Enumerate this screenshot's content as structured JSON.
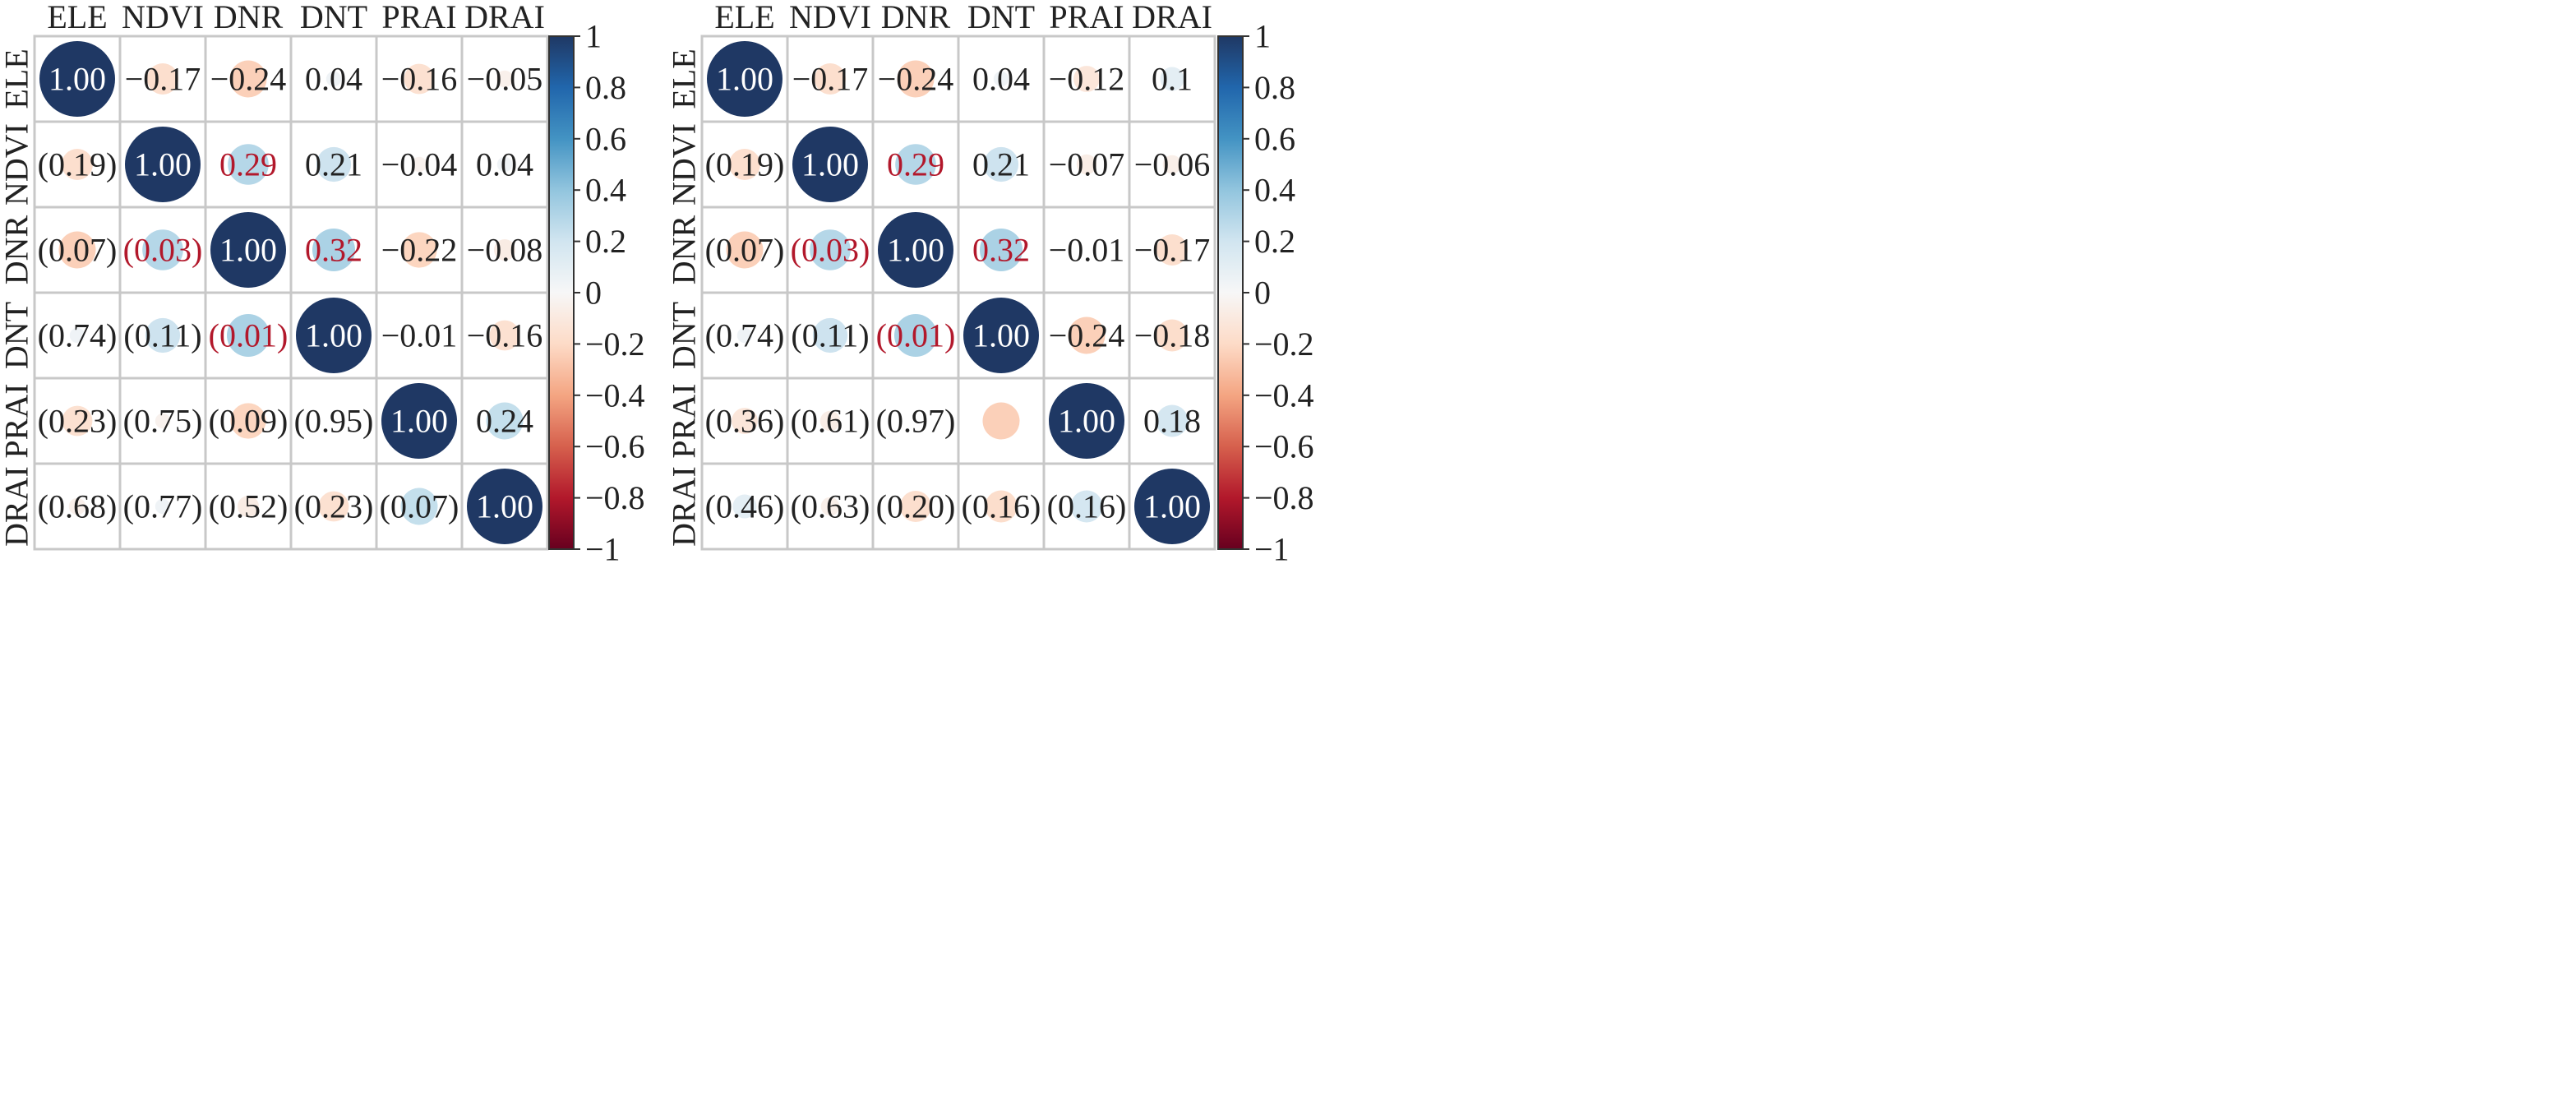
{
  "colors": {
    "grid": "#c8c8c8",
    "text_default": "#222222",
    "text_on_dark": "#ffffff",
    "text_significant": "#b2182b"
  },
  "colorscale": {
    "name": "RdBu",
    "stops": [
      {
        "v": -1.0,
        "c": "#67001f"
      },
      {
        "v": -0.8,
        "c": "#b2182b"
      },
      {
        "v": -0.6,
        "c": "#d6604d"
      },
      {
        "v": -0.4,
        "c": "#f4a582"
      },
      {
        "v": -0.2,
        "c": "#fddbc7"
      },
      {
        "v": 0.0,
        "c": "#f7f7f7"
      },
      {
        "v": 0.2,
        "c": "#d1e5f0"
      },
      {
        "v": 0.4,
        "c": "#92c5de"
      },
      {
        "v": 0.6,
        "c": "#4393c3"
      },
      {
        "v": 0.8,
        "c": "#2166ac"
      },
      {
        "v": 1.0,
        "c": "#1f3864"
      }
    ]
  },
  "chart_data": [
    {
      "type": "heatmap",
      "variables": [
        "ELE",
        "NDVI",
        "DNR",
        "DNT",
        "PRAI",
        "DRAI"
      ],
      "colorbar_ticks": [
        "1",
        "0.8",
        "0.6",
        "0.4",
        "0.2",
        "0",
        "−0.2",
        "−0.4",
        "−0.6",
        "−0.8",
        "−1"
      ],
      "upper_labels": [
        [
          "1.00",
          "−0.17",
          "−0.24",
          "0.04",
          "−0.16",
          "−0.05"
        ],
        [
          "",
          "1.00",
          "0.29",
          "0.21",
          "−0.04",
          "0.04"
        ],
        [
          "",
          "",
          "1.00",
          "0.32",
          "−0.22",
          "−0.08"
        ],
        [
          "",
          "",
          "",
          "1.00",
          "−0.01",
          "−0.16"
        ],
        [
          "",
          "",
          "",
          "",
          "1.00",
          "0.24"
        ],
        [
          "",
          "",
          "",
          "",
          "",
          "1.00"
        ]
      ],
      "lower_labels": [
        [
          "",
          "",
          "",
          "",
          "",
          ""
        ],
        [
          "(0.19)",
          "",
          "",
          "",
          "",
          ""
        ],
        [
          "(0.07)",
          "(0.03)",
          "",
          "",
          "",
          ""
        ],
        [
          "(0.74)",
          "(0.11)",
          "(0.01)",
          "",
          "",
          ""
        ],
        [
          "(0.23)",
          "(0.75)",
          "(0.09)",
          "(0.95)",
          "",
          ""
        ],
        [
          "(0.68)",
          "(0.77)",
          "(0.52)",
          "(0.23)",
          "(0.07)",
          ""
        ]
      ],
      "significant_upper": [
        [
          1,
          2
        ],
        [
          2,
          3
        ]
      ],
      "significant_lower": [
        [
          2,
          1
        ],
        [
          3,
          2
        ]
      ],
      "suppressed_circles": [
        [
          3,
          4
        ],
        [
          4,
          3
        ]
      ],
      "colorbar_range": [
        -1,
        1
      ]
    },
    {
      "type": "heatmap",
      "variables": [
        "ELE",
        "NDVI",
        "DNR",
        "DNT",
        "PRAI",
        "DRAI"
      ],
      "colorbar_ticks": [
        "1",
        "0.8",
        "0.6",
        "0.4",
        "0.2",
        "0",
        "−0.2",
        "−0.4",
        "−0.6",
        "−0.8",
        "−1"
      ],
      "upper_labels": [
        [
          "1.00",
          "−0.17",
          "−0.24",
          "0.04",
          "−0.12",
          "0.1"
        ],
        [
          "",
          "1.00",
          "0.29",
          "0.21",
          "−0.07",
          "−0.06"
        ],
        [
          "",
          "",
          "1.00",
          "0.32",
          "−0.01",
          "−0.17"
        ],
        [
          "",
          "",
          "",
          "1.00",
          "−0.24",
          "−0.18"
        ],
        [
          "",
          "",
          "",
          "",
          "1.00",
          "0.18"
        ],
        [
          "",
          "",
          "",
          "",
          "",
          "1.00"
        ]
      ],
      "lower_labels": [
        [
          "",
          "",
          "",
          "",
          "",
          ""
        ],
        [
          "(0.19)",
          "",
          "",
          "",
          "",
          ""
        ],
        [
          "(0.07)",
          "(0.03)",
          "",
          "",
          "",
          ""
        ],
        [
          "(0.74)",
          "(0.11)",
          "(0.01)",
          "",
          "",
          ""
        ],
        [
          "(0.36)",
          "(0.61)",
          "(0.97)",
          "",
          "",
          ""
        ],
        [
          "(0.46)",
          "(0.63)",
          "(0.20)",
          "(0.16)",
          "(0.16)",
          ""
        ]
      ],
      "significant_upper": [
        [
          1,
          2
        ],
        [
          2,
          3
        ]
      ],
      "significant_lower": [
        [
          2,
          1
        ],
        [
          3,
          2
        ]
      ],
      "suppressed_circles": [
        [
          2,
          4
        ]
      ],
      "colorbar_range": [
        -1,
        1
      ]
    }
  ]
}
